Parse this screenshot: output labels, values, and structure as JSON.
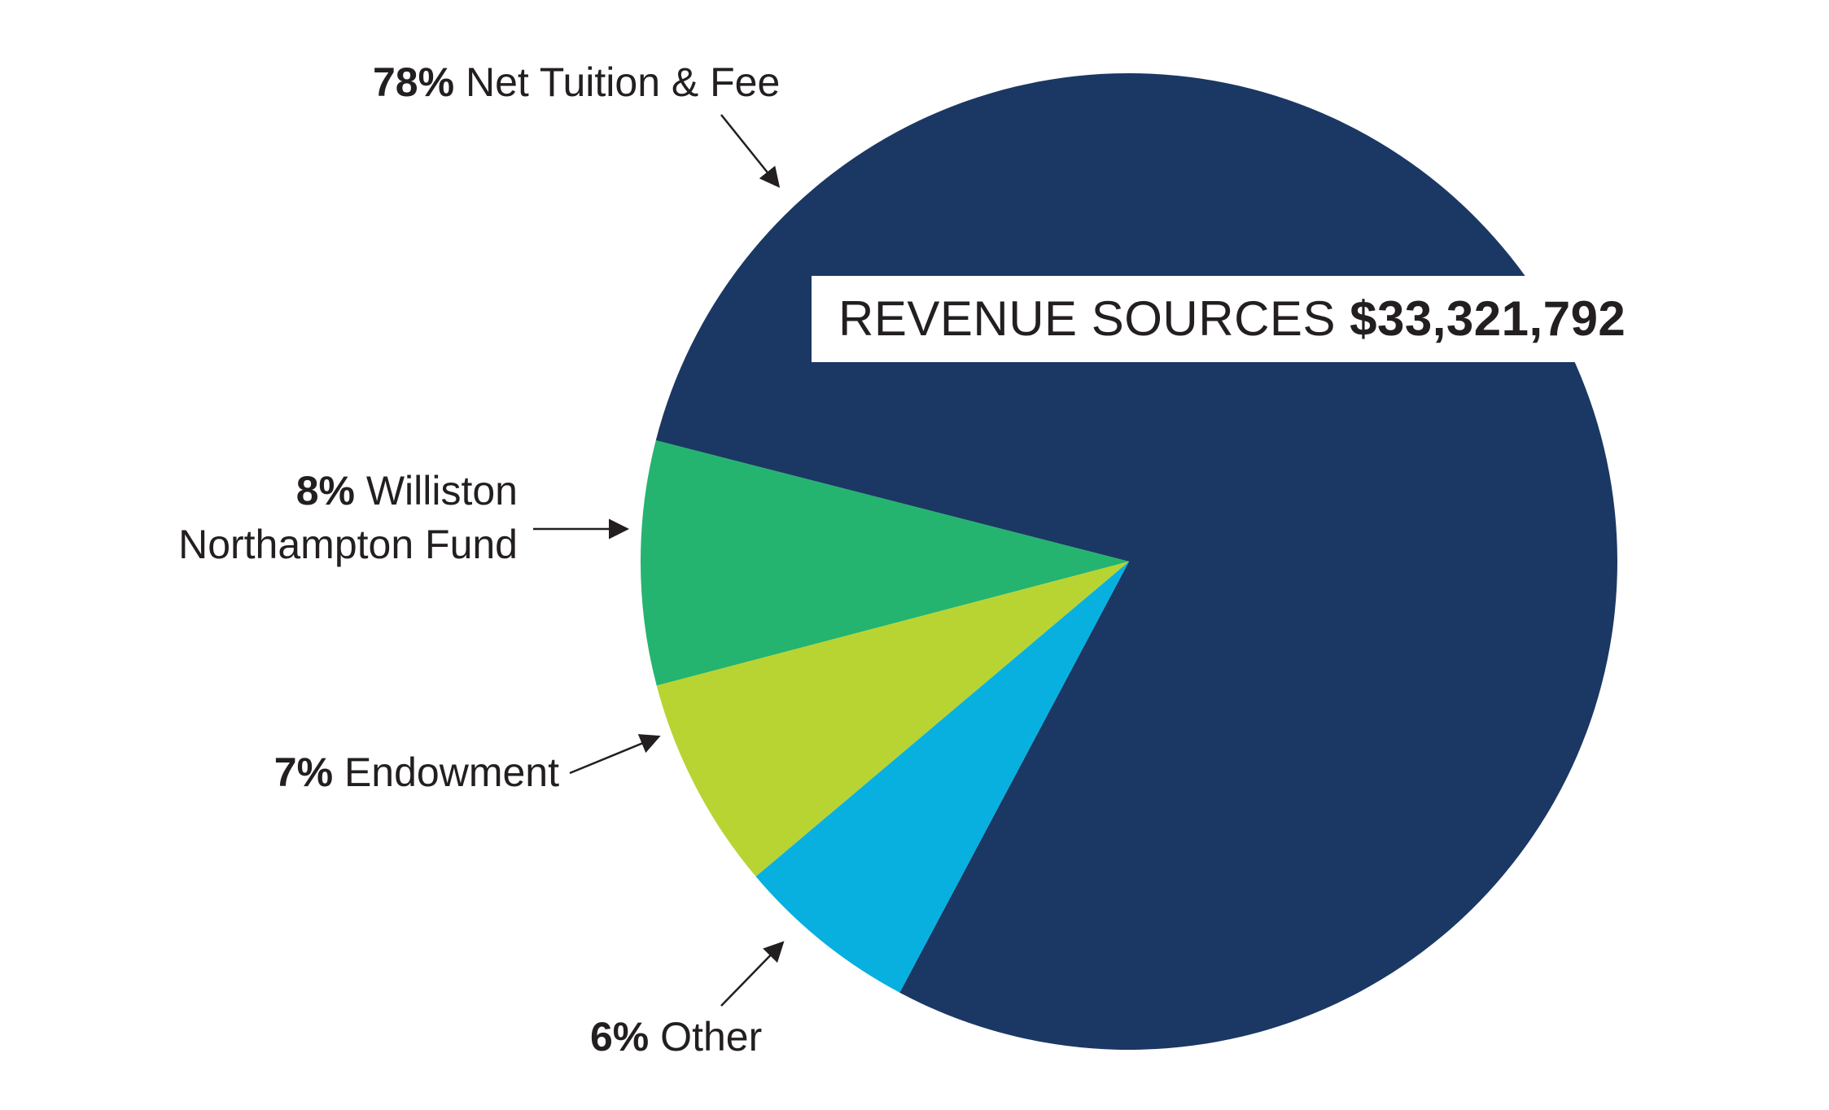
{
  "chart_data": {
    "type": "pie",
    "title": "REVENUE SOURCES",
    "total": "$33,321,792",
    "slices": [
      {
        "label": "Net Tuition & Fee",
        "pct_label": "78%",
        "value": 78,
        "color": "#1b3864"
      },
      {
        "label": "Williston Northampton Fund",
        "pct_label": "8%",
        "value": 8,
        "color": "#24b46f"
      },
      {
        "label": "Endowment",
        "pct_label": "7%",
        "value": 7,
        "color": "#b8d433"
      },
      {
        "label": "Other",
        "pct_label": "6%",
        "value": 6,
        "color": "#08b0e0"
      }
    ],
    "williston_line1": "Williston",
    "williston_line2": "Northampton Fund"
  }
}
